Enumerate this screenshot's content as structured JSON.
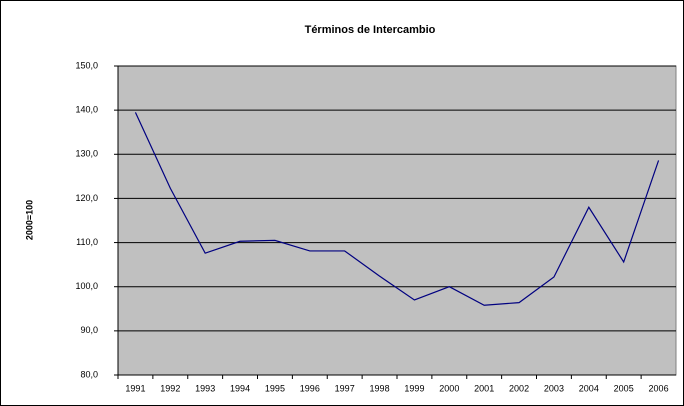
{
  "chart_data": {
    "type": "line",
    "title": "Términos de Intercambio",
    "y_label": "2000=100",
    "categories": [
      "1991",
      "1992",
      "1993",
      "1994",
      "1995",
      "1996",
      "1997",
      "1998",
      "1999",
      "2000",
      "2001",
      "2002",
      "2003",
      "2004",
      "2005",
      "2006"
    ],
    "series": [
      {
        "color": "#000080",
        "values": [
          139.5,
          122.3,
          107.6,
          110.3,
          110.5,
          108.1,
          108.1,
          102.4,
          97.0,
          100.0,
          95.8,
          96.4,
          102.2,
          118.0,
          105.6,
          128.6
        ]
      }
    ],
    "ylim": [
      80,
      150
    ],
    "yticks": [
      {
        "value": 80,
        "label": "80,0"
      },
      {
        "value": 90,
        "label": "90,0"
      },
      {
        "value": 100,
        "label": "100,0"
      },
      {
        "value": 110,
        "label": "110,0"
      },
      {
        "value": 120,
        "label": "120,0"
      },
      {
        "value": 130,
        "label": "130,0"
      },
      {
        "value": 140,
        "label": "140,0"
      },
      {
        "value": 150,
        "label": "150,0"
      }
    ],
    "grid": true,
    "plot_background": "#c0c0c0"
  }
}
